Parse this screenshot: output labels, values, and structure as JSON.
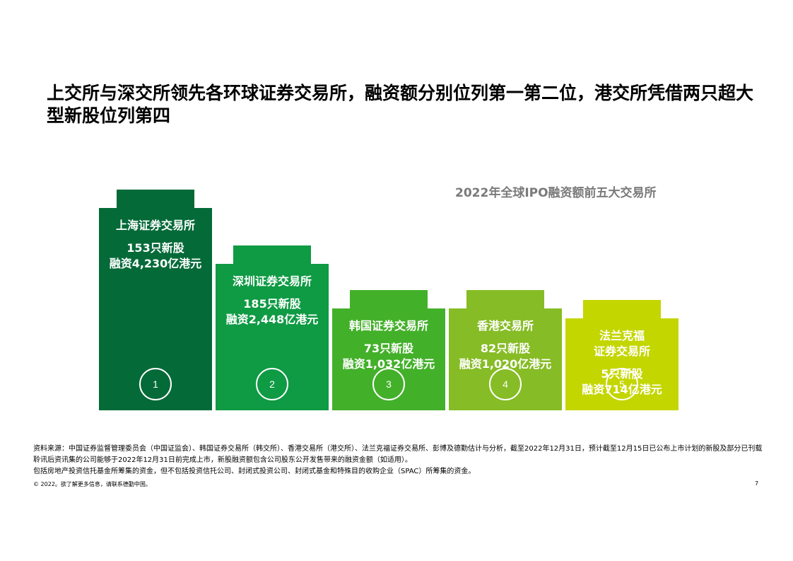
{
  "page": {
    "title": "上交所与深交所领先各环球证券交易所，融资额分别位列第一第二位，港交所凭借两只超大型新股位列第四",
    "chart_title": "2022年全球IPO融资额前五大交易所",
    "source_line1": "资料来源：中国证券监督管理委员会（中国证监会）、韩国证券交易所（韩交所）、香港交易所（港交所）、法兰克福证券交易所、彭博及德勤估计与分析，截至2022年12月31日，预计截至12月15日已公布上市计划的新股及部分已刊载聆讯后资讯集的公司能够于2022年12月31日前完成上市，新股融资额包含公司股东公开发售带来的融资金额（如适用）。",
    "source_line2": "包括房地产投资信托基金所筹集的资金，但不包括投资信托公司、封闭式投资公司、封闭式基金和特殊目的收购企业（SPAC）所筹集的资金。",
    "copyright": "© 2022。欲了解更多信息，请联系德勤中国。",
    "page_number": "7"
  },
  "chart_data": {
    "type": "bar",
    "title": "2022年全球IPO融资额前五大交易所",
    "categories": [
      "上海证券交易所",
      "深圳证券交易所",
      "韩国证券交易所",
      "香港交易所",
      "法兰克福证券交易所"
    ],
    "ranks": [
      "1",
      "2",
      "3",
      "4",
      "5"
    ],
    "ipo_count": [
      153,
      185,
      73,
      82,
      5
    ],
    "funds_raised_hkd_100m": [
      4230,
      2448,
      1032,
      1020,
      714
    ],
    "colors": [
      "#046a38",
      "#0f9a44",
      "#43b02a",
      "#86bc25",
      "#c4d600"
    ],
    "labels": [
      {
        "name_lines": [
          "上海证券交易所"
        ],
        "ipos": "153只新股",
        "funds": "融资4,230亿港元"
      },
      {
        "name_lines": [
          "深圳证券交易所"
        ],
        "ipos": "185只新股",
        "funds": "融资2,448亿港元"
      },
      {
        "name_lines": [
          "韩国证券交易所"
        ],
        "ipos": "73只新股",
        "funds": "融资1,032亿港元"
      },
      {
        "name_lines": [
          "香港交易所"
        ],
        "ipos": "82只新股",
        "funds": "融资1,020亿港元"
      },
      {
        "name_lines": [
          "法兰克福",
          "证券交易所"
        ],
        "ipos": "5只新股",
        "funds": "融资714亿港元"
      }
    ]
  }
}
